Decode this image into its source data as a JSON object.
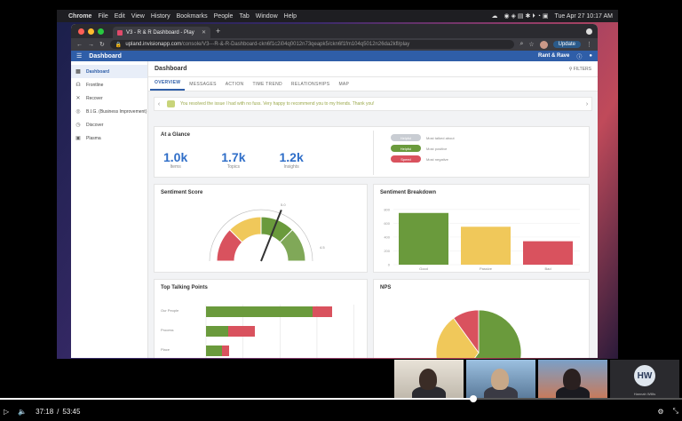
{
  "menubar": {
    "app": "Chrome",
    "items": [
      "File",
      "Edit",
      "View",
      "History",
      "Bookmarks",
      "People",
      "Tab",
      "Window",
      "Help"
    ],
    "clock": "Tue Apr 27  10:17 AM"
  },
  "browser": {
    "tab_title": "V3 - R & R Dashboard - Play",
    "url_host": "upland.invisionapp.com",
    "url_path": "/console/V3---R-&-R-Dashboard-ckn6f1c2i04q0012n73qeapk5/ckn6f1fm104q5012n26da2kfl/play",
    "update_label": "Update"
  },
  "app": {
    "header_title": "Dashboard",
    "brand": "Rant & Rave",
    "sidebar": [
      {
        "label": "Dashboard",
        "icon": "dashboard-icon",
        "glyph": "▦",
        "active": true
      },
      {
        "label": "Frontline",
        "icon": "frontline-icon",
        "glyph": "☊",
        "active": false
      },
      {
        "label": "Recover",
        "icon": "recover-icon",
        "glyph": "✕",
        "active": false
      },
      {
        "label": "B.I.G. (Business Improvement)",
        "icon": "big-icon",
        "glyph": "◎",
        "active": false
      },
      {
        "label": "Discover",
        "icon": "discover-icon",
        "glyph": "◷",
        "active": false
      },
      {
        "label": "Plasma",
        "icon": "plasma-icon",
        "glyph": "▣",
        "active": false
      }
    ],
    "page_title": "Dashboard",
    "filters_label": "FILTERS",
    "tabs": [
      "OVERVIEW",
      "MESSAGES",
      "ACTION",
      "TIME TREND",
      "RELATIONSHIPS",
      "MAP"
    ],
    "carousel_text": "You resolved the issue I had with no fuss. Very happy to recommend you to my friends. Thank you!",
    "glance": {
      "title": "At a Glance",
      "stats": [
        {
          "value": "1.0k",
          "label": "Items"
        },
        {
          "value": "1.7k",
          "label": "Topics"
        },
        {
          "value": "1.2k",
          "label": "Insights"
        }
      ],
      "pills": [
        {
          "label": "Helpful",
          "desc": "Most talked about",
          "color": "#c9cdd3"
        },
        {
          "label": "Helpful",
          "desc": "Most positive",
          "color": "#6a9a3c"
        },
        {
          "label": "Speed",
          "desc": "Most negative",
          "color": "#d9525e"
        }
      ]
    },
    "sentiment_score": {
      "title": "Sentiment Score",
      "max_label": "5.0",
      "mid_label": "4.5",
      "needle_fraction": 0.62
    },
    "breakdown_title": "Sentiment Breakdown",
    "talking_title": "Top Talking Points",
    "nps_title": "NPS"
  },
  "chart_data": [
    {
      "type": "bar",
      "title": "Sentiment Breakdown",
      "categories": [
        "Good",
        "Passive",
        "Bad"
      ],
      "values": [
        750,
        550,
        340
      ],
      "colors": [
        "#6a9a3c",
        "#f0c85a",
        "#d9525e"
      ],
      "yticks": [
        "800",
        "600",
        "400",
        "200",
        "0"
      ],
      "ylim": [
        0,
        850
      ]
    },
    {
      "type": "bar",
      "title": "Top Talking Points",
      "orientation": "horizontal",
      "categories": [
        "Our People",
        "Process",
        "Place"
      ],
      "series": [
        {
          "color": "#6a9a3c",
          "values": [
            120,
            25,
            18
          ]
        },
        {
          "color": "#d9525e",
          "values": [
            22,
            30,
            8
          ]
        }
      ],
      "xlim": [
        0,
        170
      ]
    },
    {
      "type": "pie",
      "title": "NPS",
      "values": [
        60,
        30,
        10
      ],
      "colors": [
        "#6a9a3c",
        "#f0c85a",
        "#d9525e"
      ]
    }
  ],
  "player": {
    "elapsed": "37:18",
    "total": "53:45",
    "progress": 0.694,
    "participant_initials": "HW",
    "participant_name": "Hannah Willis"
  }
}
